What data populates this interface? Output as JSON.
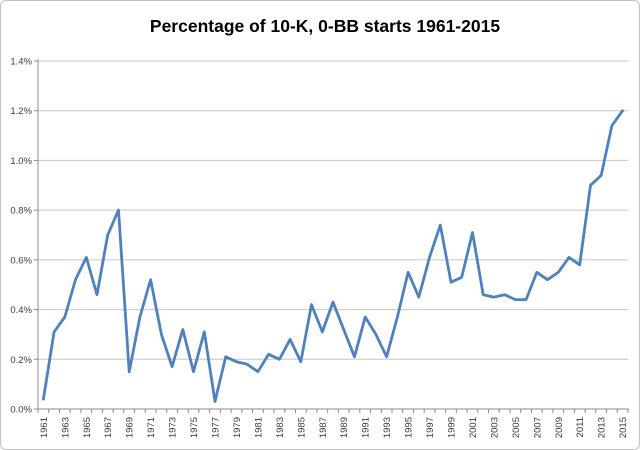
{
  "chart_data": {
    "type": "line",
    "title": "Percentage of 10-K, 0-BB starts 1961-2015",
    "xlabel": "",
    "ylabel": "",
    "grid": true,
    "legend": false,
    "line_color": "#4F81BD",
    "gridline_color": "#c6c6c6",
    "axis_color": "#8c8c8c",
    "x": [
      1961,
      1962,
      1963,
      1964,
      1965,
      1966,
      1967,
      1968,
      1969,
      1970,
      1971,
      1972,
      1973,
      1974,
      1975,
      1976,
      1977,
      1978,
      1979,
      1980,
      1981,
      1982,
      1983,
      1984,
      1985,
      1986,
      1987,
      1988,
      1989,
      1990,
      1991,
      1992,
      1993,
      1994,
      1995,
      1996,
      1997,
      1998,
      1999,
      2000,
      2001,
      2002,
      2003,
      2004,
      2005,
      2006,
      2007,
      2008,
      2009,
      2010,
      2011,
      2012,
      2013,
      2014,
      2015
    ],
    "values": [
      0.04,
      0.31,
      0.37,
      0.52,
      0.61,
      0.46,
      0.7,
      0.8,
      0.15,
      0.37,
      0.52,
      0.3,
      0.17,
      0.32,
      0.15,
      0.31,
      0.03,
      0.21,
      0.19,
      0.18,
      0.15,
      0.22,
      0.2,
      0.28,
      0.19,
      0.42,
      0.31,
      0.43,
      0.32,
      0.21,
      0.37,
      0.3,
      0.21,
      0.37,
      0.55,
      0.45,
      0.61,
      0.74,
      0.51,
      0.53,
      0.71,
      0.46,
      0.45,
      0.46,
      0.44,
      0.44,
      0.55,
      0.52,
      0.55,
      0.61,
      0.58,
      0.9,
      0.94,
      1.14,
      1.2
    ],
    "y_axis": {
      "min": 0,
      "max": 1.4,
      "step": 0.2,
      "tick_labels": [
        "0.0%",
        "0.2%",
        "0.4%",
        "0.6%",
        "0.8%",
        "1.0%",
        "1.2%",
        "1.4%"
      ]
    },
    "x_axis": {
      "tick_labels": [
        "1961",
        "1963",
        "1965",
        "1967",
        "1969",
        "1971",
        "1973",
        "1975",
        "1977",
        "1979",
        "1981",
        "1983",
        "1985",
        "1987",
        "1989",
        "1991",
        "1993",
        "1995",
        "1997",
        "1999",
        "2001",
        "2003",
        "2005",
        "2007",
        "2009",
        "2011",
        "2013",
        "2015"
      ]
    }
  }
}
